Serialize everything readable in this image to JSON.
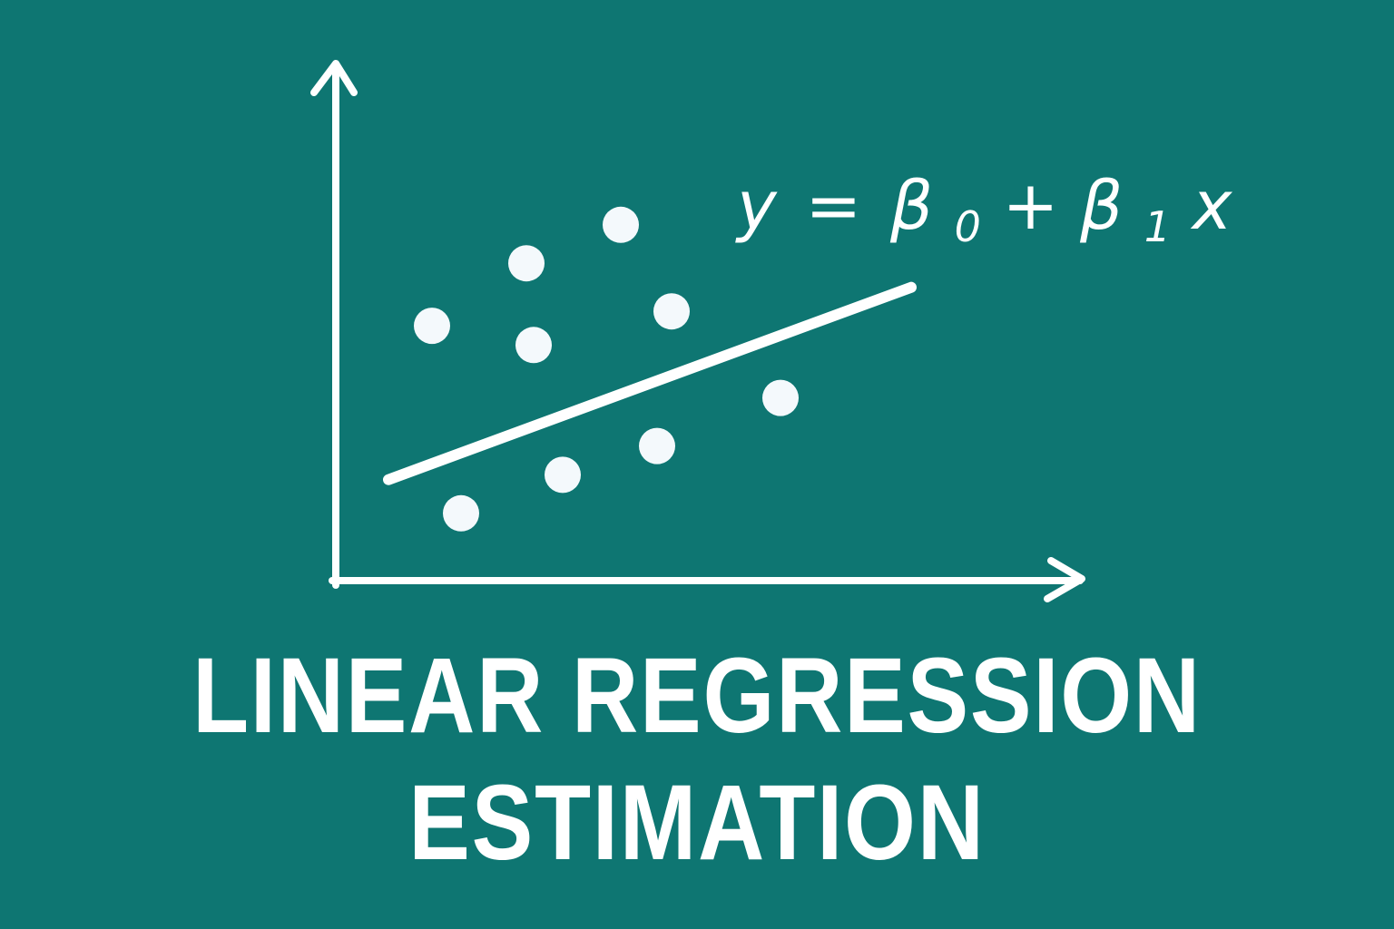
{
  "title": {
    "line1": "LINEAR REGRESSION",
    "line2": "ESTIMATION"
  },
  "colors": {
    "background": "#0e7672",
    "foreground": "#ffffff",
    "points": "#f4f9fc"
  },
  "chart_data": {
    "type": "scatter",
    "title": "LINEAR REGRESSION ESTIMATION",
    "xlabel": "",
    "ylabel": "",
    "xlim": [
      0,
      10
    ],
    "ylim": [
      0,
      10
    ],
    "grid": false,
    "axis_arrows": true,
    "equation": {
      "y": "y",
      "eq": "=",
      "beta": "β",
      "sub0": "0",
      "plus": "+",
      "sub1": "1",
      "x": "x"
    },
    "points": [
      {
        "x": 1.3,
        "y": 5.3
      },
      {
        "x": 1.7,
        "y": 1.4
      },
      {
        "x": 2.6,
        "y": 6.6
      },
      {
        "x": 2.7,
        "y": 4.9
      },
      {
        "x": 3.1,
        "y": 2.2
      },
      {
        "x": 3.9,
        "y": 7.4
      },
      {
        "x": 4.4,
        "y": 2.8
      },
      {
        "x": 4.6,
        "y": 5.6
      },
      {
        "x": 6.1,
        "y": 3.8
      }
    ],
    "fit_line": {
      "x": [
        0.7,
        7.9
      ],
      "y": [
        2.1,
        6.1
      ]
    }
  }
}
